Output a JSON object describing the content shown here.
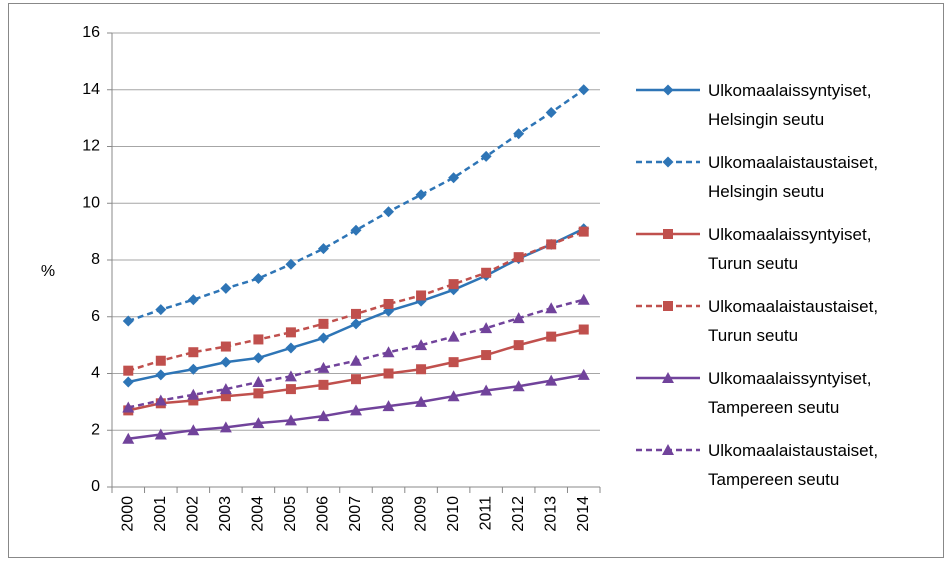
{
  "chart_data": {
    "type": "line",
    "y_label": "%",
    "categories": [
      "2000",
      "2001",
      "2002",
      "2003",
      "2004",
      "2005",
      "2006",
      "2007",
      "2008",
      "2009",
      "2010",
      "2011",
      "2012",
      "2013",
      "2014"
    ],
    "ylim": [
      0,
      16
    ],
    "yticks": [
      0,
      2,
      4,
      6,
      8,
      10,
      12,
      14,
      16
    ],
    "grid": true,
    "legend": "right",
    "series": [
      {
        "name": "Ulkomaalaissyntyiset, Helsingin seutu",
        "color": "#2e75b6",
        "dash": false,
        "marker": "diamond",
        "values": [
          3.7,
          3.95,
          4.15,
          4.4,
          4.55,
          4.9,
          5.25,
          5.75,
          6.2,
          6.55,
          6.95,
          7.45,
          8.05,
          8.55,
          9.1
        ]
      },
      {
        "name": "Ulkomaalaistaustaiset, Helsingin seutu",
        "color": "#2e75b6",
        "dash": true,
        "marker": "diamond",
        "values": [
          5.85,
          6.25,
          6.6,
          7.0,
          7.35,
          7.85,
          8.4,
          9.05,
          9.7,
          10.3,
          10.9,
          11.65,
          12.45,
          13.2,
          14.0
        ]
      },
      {
        "name": "Ulkomaalaissyntyiset, Turun seutu",
        "color": "#c0504d",
        "dash": false,
        "marker": "square",
        "values": [
          2.7,
          2.95,
          3.05,
          3.2,
          3.3,
          3.45,
          3.6,
          3.8,
          4.0,
          4.15,
          4.4,
          4.65,
          5.0,
          5.3,
          5.55
        ]
      },
      {
        "name": "Ulkomaalaistaustaiset, Turun seutu",
        "color": "#c0504d",
        "dash": true,
        "marker": "square",
        "values": [
          4.1,
          4.45,
          4.75,
          4.95,
          5.2,
          5.45,
          5.75,
          6.1,
          6.45,
          6.75,
          7.15,
          7.55,
          8.1,
          8.55,
          9.0
        ]
      },
      {
        "name": "Ulkomaalaissyntyiset, Tampereen seutu",
        "color": "#71439b",
        "dash": false,
        "marker": "triangle",
        "values": [
          1.7,
          1.85,
          2.0,
          2.1,
          2.25,
          2.35,
          2.5,
          2.7,
          2.85,
          3.0,
          3.2,
          3.4,
          3.55,
          3.75,
          3.95
        ]
      },
      {
        "name": "Ulkomaalaistaustaiset, Tampereen seutu",
        "color": "#71439b",
        "dash": true,
        "marker": "triangle",
        "values": [
          2.8,
          3.05,
          3.25,
          3.45,
          3.7,
          3.9,
          4.2,
          4.45,
          4.75,
          5.0,
          5.3,
          5.6,
          5.95,
          6.3,
          6.6
        ]
      }
    ]
  }
}
